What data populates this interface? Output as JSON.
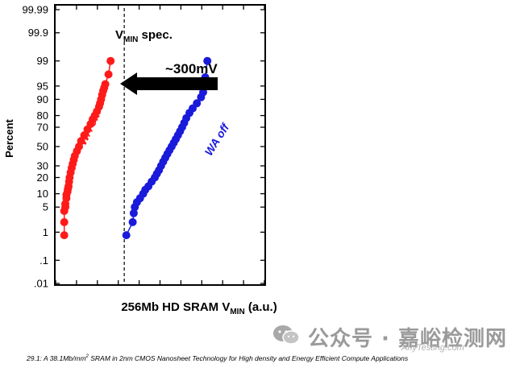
{
  "chart_data": {
    "type": "scatter",
    "y_scale": "probability",
    "ylabel": "Percent",
    "xlabel_main": "256Mb HD SRAM V",
    "xlabel_sub": "MIN",
    "xlabel_tail": " (a.u.)",
    "y_ticks": [
      0.01,
      0.1,
      1,
      5,
      10,
      20,
      30,
      50,
      70,
      80,
      90,
      95,
      99,
      99.9,
      99.99
    ],
    "y_tick_labels": [
      ".01",
      ".1",
      "1",
      "5",
      "10",
      "20",
      "30",
      "50",
      "70",
      "80",
      "90",
      "95",
      "99",
      "99.9",
      "99.99"
    ],
    "ylim": [
      0.01,
      99.99
    ],
    "xlim": [
      0,
      100
    ],
    "vmin_spec_x": 33,
    "annotations": {
      "spec_main": "V",
      "spec_sub": "MIN",
      "spec_tail": " spec.",
      "shift": "~300mV"
    },
    "series": [
      {
        "name": "WA on",
        "color": "#ff1a1a",
        "x": [
          4.5,
          4.5,
          4.5,
          5.0,
          5.0,
          5.5,
          5.5,
          6.0,
          6.2,
          6.5,
          6.8,
          7.0,
          7.5,
          8.0,
          8.5,
          9.0,
          9.5,
          10.5,
          11.5,
          12.5,
          14.0,
          15.5,
          17.0,
          18.0,
          19.0,
          20.0,
          21.0,
          21.5,
          22.0,
          22.5,
          23.0,
          23.5,
          24.0,
          25.5,
          26.5
        ],
        "y": [
          0.8,
          2,
          4,
          5,
          6,
          8,
          9.5,
          11,
          12.5,
          14,
          17,
          20,
          24,
          28,
          32,
          36,
          40,
          45,
          50,
          56,
          62,
          68,
          73,
          77,
          80,
          83,
          86,
          88,
          90,
          92,
          93.5,
          94.5,
          95.5,
          97.5,
          99
        ]
      },
      {
        "name": "WA off",
        "color": "#1a1adb",
        "x": [
          34.0,
          37.0,
          37.5,
          38.0,
          39.0,
          40.5,
          42.0,
          43.0,
          44.5,
          46.0,
          47.5,
          48.5,
          49.5,
          50.5,
          51.5,
          52.5,
          53.5,
          54.5,
          55.5,
          56.5,
          57.5,
          58.5,
          59.5,
          60.5,
          61.5,
          62.5,
          64.0,
          65.5,
          67.5,
          69.5,
          70.5,
          71.0,
          71.5,
          72.5
        ],
        "y": [
          0.8,
          2,
          3.5,
          5,
          6.5,
          8,
          10,
          12,
          14,
          17,
          20,
          23,
          26,
          30,
          34,
          38,
          42,
          46,
          50,
          54,
          58,
          62,
          66,
          70,
          74,
          78,
          82,
          85,
          88,
          91,
          93,
          95,
          97,
          99
        ]
      }
    ]
  },
  "caption": {
    "prefix": "29.1: A 38.1Mb/mm",
    "sup": "2",
    "rest": " SRAM in 2nm CMOS Nanosheet Technology for High density and Energy Efficient Compute Applications"
  },
  "watermark": {
    "text": "公众号 · 嘉峪检测网",
    "sub": "AnyTesting.com",
    "color": "#9a9a9a"
  }
}
